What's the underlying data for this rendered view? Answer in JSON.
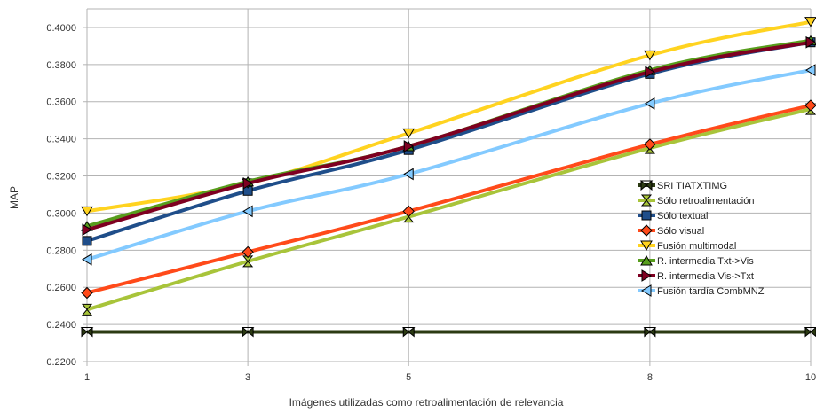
{
  "chart_data": {
    "type": "line",
    "xlabel": "Imágenes utilizadas como retroalimentación de relevancia",
    "ylabel": "MAP",
    "x": [
      1,
      3,
      5,
      8,
      10
    ],
    "x_tick_labels": [
      "1",
      "3",
      "5",
      "8",
      "10"
    ],
    "ylim": [
      0.22,
      0.41
    ],
    "y_ticks": [
      0.22,
      0.24,
      0.26,
      0.28,
      0.3,
      0.32,
      0.34,
      0.36,
      0.38,
      0.4
    ],
    "y_tick_labels": [
      "0.2200",
      "0.2400",
      "0.2600",
      "0.2800",
      "0.3000",
      "0.3200",
      "0.3400",
      "0.3600",
      "0.3800",
      "0.4000"
    ],
    "grid": true,
    "legend_position": "right",
    "series": [
      {
        "name": "SRI TIATXTIMG",
        "values": [
          0.236,
          0.236,
          0.236,
          0.236,
          0.236
        ],
        "color": "#2b3a12",
        "marker": "bowtie"
      },
      {
        "name": "Sólo retroalimentación",
        "values": [
          0.248,
          0.274,
          0.298,
          0.335,
          0.356
        ],
        "color": "#a8c43a",
        "marker": "hourglass"
      },
      {
        "name": "Sólo textual",
        "values": [
          0.285,
          0.312,
          0.334,
          0.375,
          0.392
        ],
        "color": "#1f4e8a",
        "marker": "square"
      },
      {
        "name": "Sólo visual",
        "values": [
          0.257,
          0.279,
          0.301,
          0.337,
          0.358
        ],
        "color": "#ff4a1a",
        "marker": "diamond"
      },
      {
        "name": "Fusión multimodal",
        "values": [
          0.301,
          0.316,
          0.343,
          0.385,
          0.403
        ],
        "color": "#ffd320",
        "marker": "triangle-down"
      },
      {
        "name": "R. intermedia Txt->Vis",
        "values": [
          0.293,
          0.317,
          0.336,
          0.377,
          0.393
        ],
        "color": "#579d1c",
        "marker": "triangle-up"
      },
      {
        "name": "R. intermedia Vis->Txt",
        "values": [
          0.291,
          0.316,
          0.336,
          0.376,
          0.392
        ],
        "color": "#7e0021",
        "marker": "triangle-right"
      },
      {
        "name": "Fusión tardía CombMNZ",
        "values": [
          0.275,
          0.301,
          0.321,
          0.359,
          0.377
        ],
        "color": "#83caff",
        "marker": "triangle-left"
      }
    ]
  }
}
